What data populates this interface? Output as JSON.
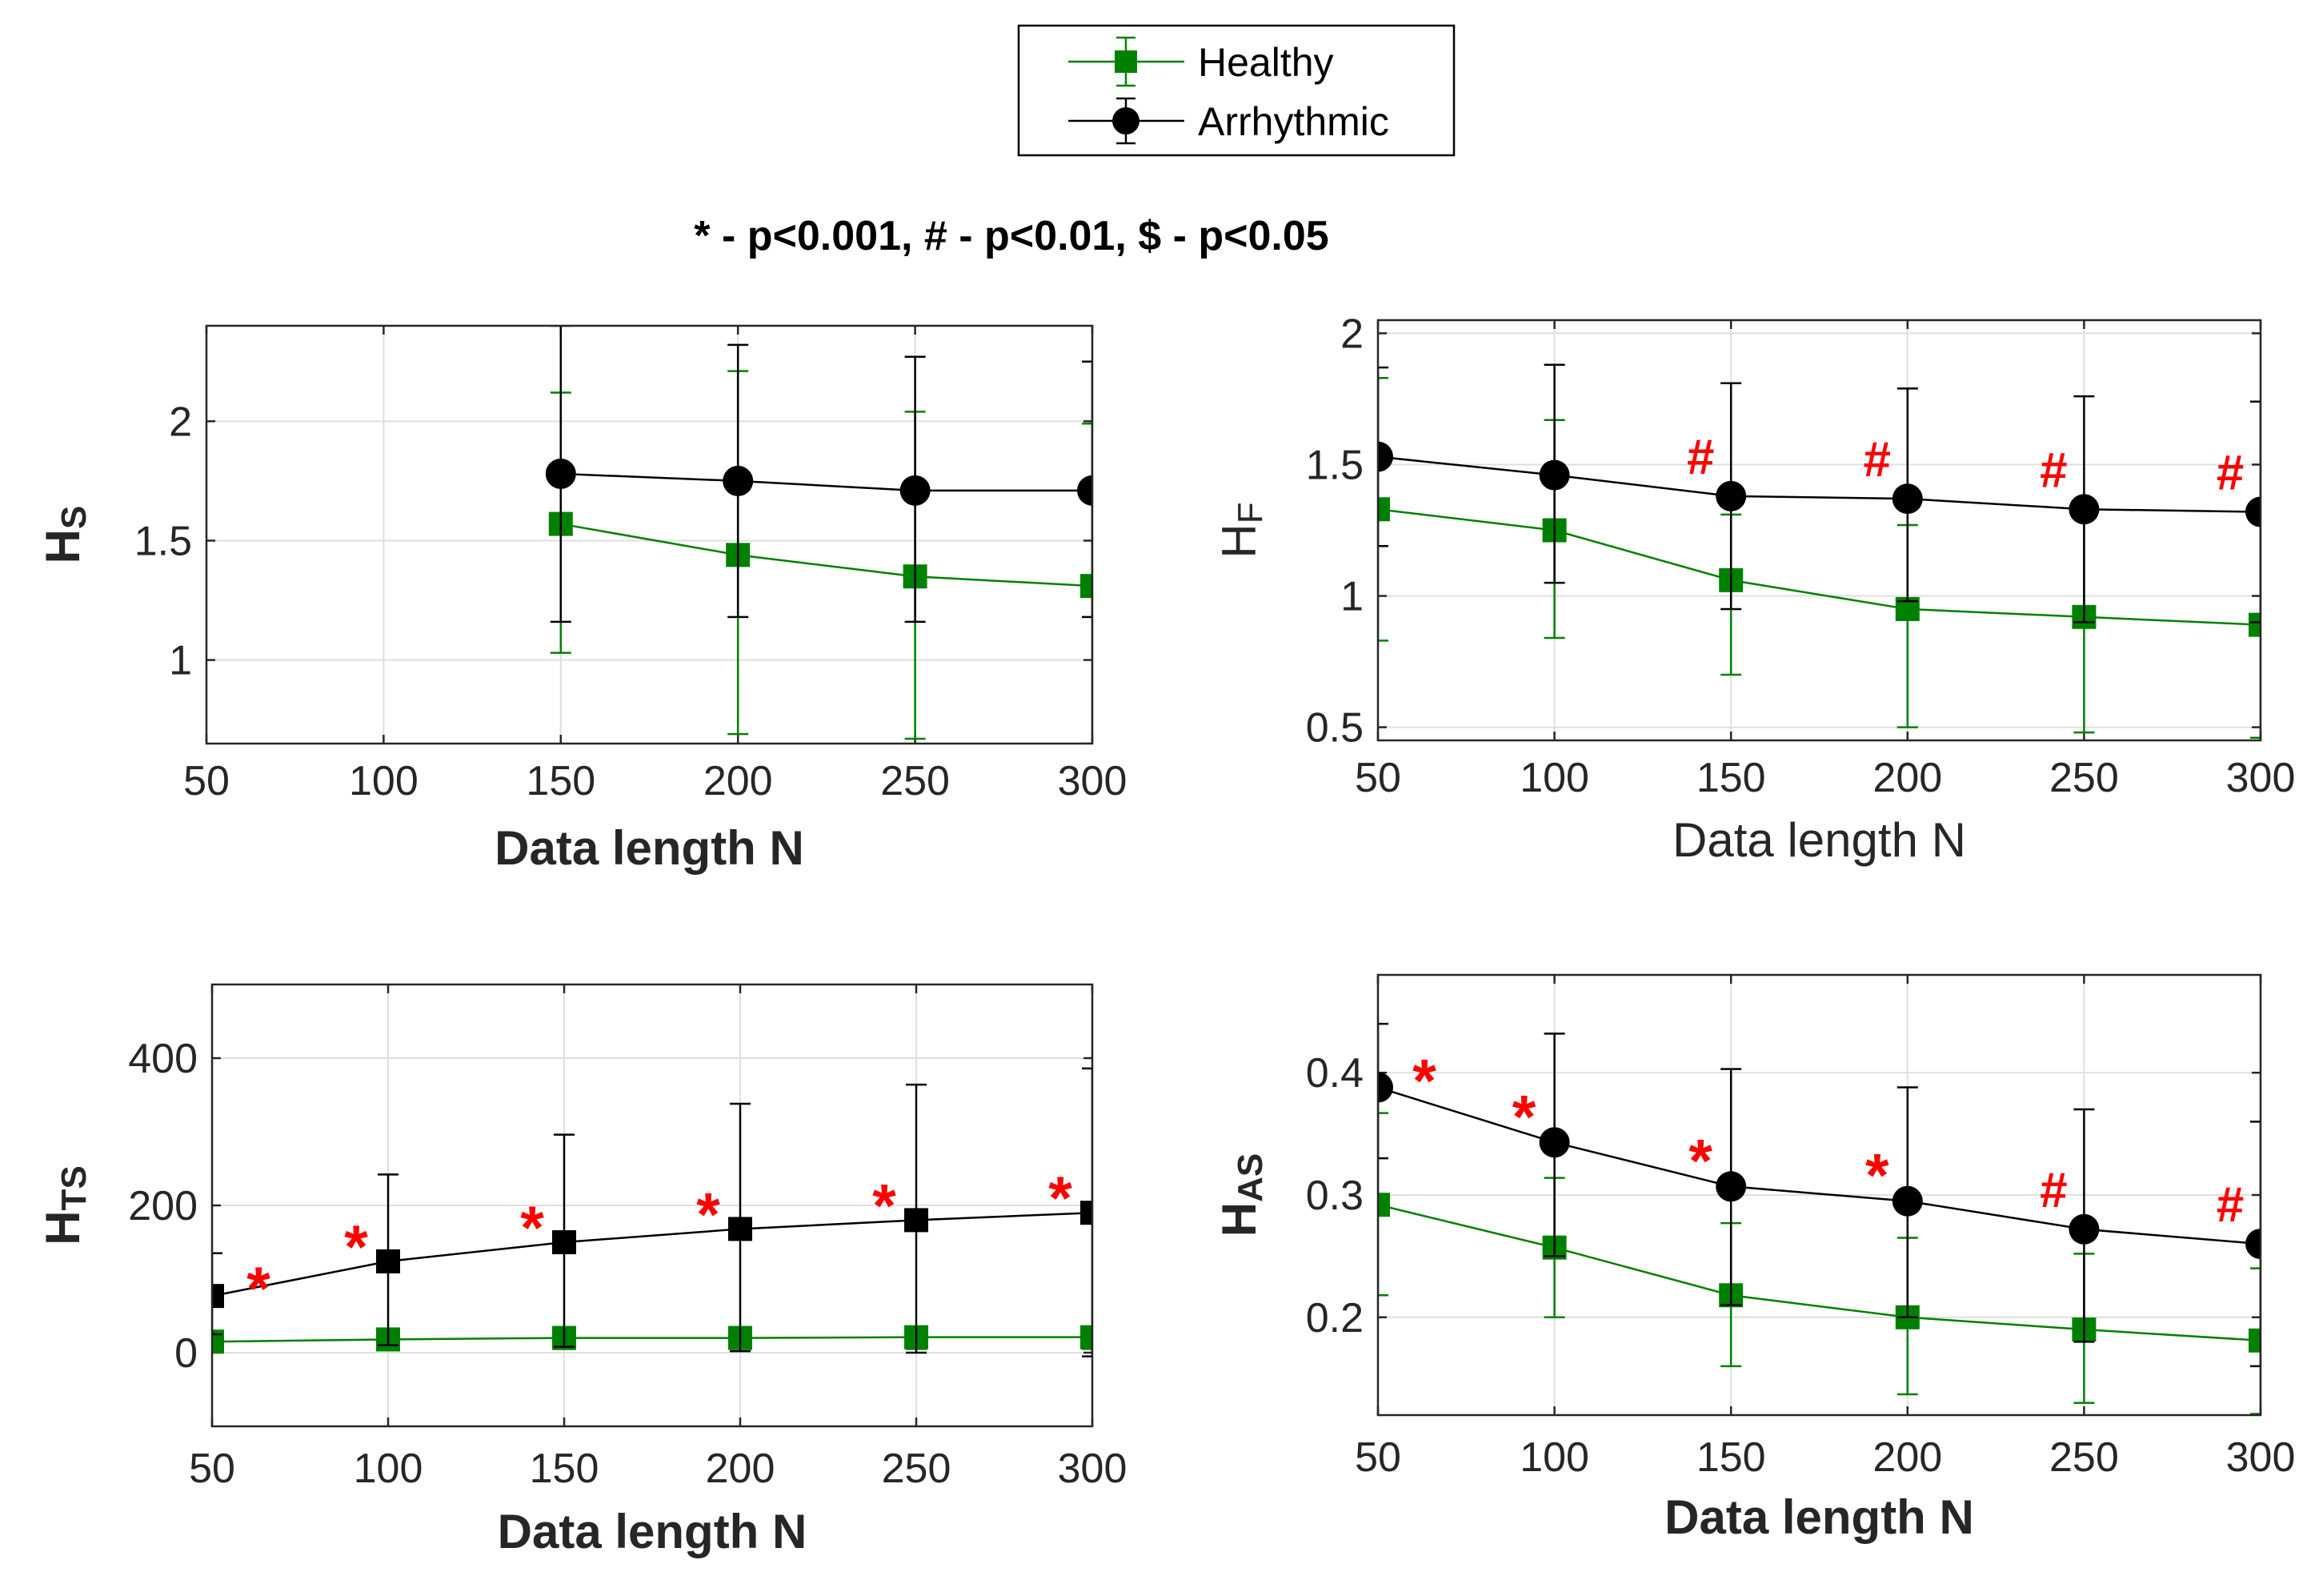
{
  "legend": {
    "entries": [
      {
        "name": "Healthy",
        "color": "#008000",
        "marker": "square"
      },
      {
        "name": "Arrhythmic",
        "color": "#000000",
        "marker": "circle"
      }
    ]
  },
  "subtitle": "* - p<0.001, # - p<0.01, $ - p<0.05",
  "colors": {
    "healthy": "#008000",
    "arrhythmic": "#000000",
    "significance": "#ff0000",
    "grid": "#dfdfdf"
  },
  "chart_data": [
    {
      "id": "hs",
      "type": "line",
      "ylabel_main": "H",
      "ylabel_sub": "S",
      "ylabel_bold": true,
      "xlabel": "Data length N",
      "xlabel_bold": true,
      "xlim": [
        50,
        300
      ],
      "ylim": [
        0.65,
        2.4
      ],
      "xticks": [
        50,
        100,
        150,
        200,
        250,
        300
      ],
      "yticks": [
        1,
        1.5,
        2
      ],
      "ytick_labels": [
        "1",
        "1.5",
        "2"
      ],
      "grid": true,
      "arrhythmic_marker": "circle",
      "series": [
        {
          "name": "Healthy",
          "x": [
            150,
            200,
            250,
            300
          ],
          "y": [
            1.57,
            1.44,
            1.35,
            1.31
          ],
          "err_low": [
            1.03,
            0.69,
            0.67,
            0.65
          ],
          "err_high": [
            2.12,
            2.21,
            2.04,
            1.99
          ]
        },
        {
          "name": "Arrhythmic",
          "x": [
            150,
            200,
            250,
            300
          ],
          "y": [
            1.78,
            1.75,
            1.71,
            1.71
          ],
          "err_low": [
            1.16,
            1.18,
            1.16,
            1.18
          ],
          "err_high": [
            2.4,
            2.32,
            2.27,
            2.25
          ]
        }
      ],
      "annotations": []
    },
    {
      "id": "hf",
      "type": "line",
      "ylabel_main": "H",
      "ylabel_sub": "F",
      "ylabel_bold": false,
      "xlabel": "Data length N",
      "xlabel_bold": false,
      "xlim": [
        50,
        300
      ],
      "ylim": [
        0.45,
        2.05
      ],
      "xticks": [
        50,
        100,
        150,
        200,
        250,
        300
      ],
      "yticks": [
        0.5,
        1,
        1.5,
        2
      ],
      "ytick_labels": [
        "0.5",
        "1",
        "1.5",
        "2"
      ],
      "grid": true,
      "arrhythmic_marker": "circle",
      "series": [
        {
          "name": "Healthy",
          "x": [
            50,
            100,
            150,
            200,
            250,
            300
          ],
          "y": [
            1.33,
            1.25,
            1.06,
            0.95,
            0.92,
            0.89
          ],
          "err_low": [
            0.83,
            0.84,
            0.7,
            0.5,
            0.48,
            0.46
          ],
          "err_high": [
            1.83,
            1.67,
            1.31,
            1.27,
            1.32,
            1.3
          ]
        },
        {
          "name": "Arrhythmic",
          "x": [
            50,
            100,
            150,
            200,
            250,
            300
          ],
          "y": [
            1.53,
            1.46,
            1.38,
            1.37,
            1.33,
            1.32
          ],
          "err_low": [
            1.19,
            1.05,
            0.95,
            0.98,
            0.9,
            0.9
          ],
          "err_high": [
            1.87,
            1.88,
            1.81,
            1.79,
            1.76,
            1.74
          ]
        }
      ],
      "annotations": [
        {
          "x": 150,
          "y": 1.38,
          "text": "#"
        },
        {
          "x": 200,
          "y": 1.37,
          "text": "#"
        },
        {
          "x": 250,
          "y": 1.33,
          "text": "#"
        },
        {
          "x": 300,
          "y": 1.32,
          "text": "#"
        }
      ]
    },
    {
      "id": "hts",
      "type": "line",
      "ylabel_main": "H",
      "ylabel_sub": "TS",
      "ylabel_bold": true,
      "xlabel": "Data length N",
      "xlabel_bold": true,
      "xlim": [
        50,
        300
      ],
      "ylim": [
        -100,
        500
      ],
      "xticks": [
        50,
        100,
        150,
        200,
        250,
        300
      ],
      "yticks": [
        0,
        200,
        400
      ],
      "ytick_labels": [
        "0",
        "200",
        "400"
      ],
      "grid": true,
      "arrhythmic_marker": "square",
      "series": [
        {
          "name": "Healthy",
          "x": [
            50,
            100,
            150,
            200,
            250,
            300
          ],
          "y": [
            15,
            18,
            20,
            20,
            21,
            21
          ],
          "err_low": [
            5,
            5,
            5,
            5,
            5,
            5
          ],
          "err_high": [
            25,
            28,
            30,
            32,
            32,
            32
          ]
        },
        {
          "name": "Arrhythmic",
          "x": [
            50,
            100,
            150,
            200,
            250,
            300
          ],
          "y": [
            77,
            124,
            150,
            168,
            180,
            190
          ],
          "err_low": [
            25,
            10,
            8,
            2,
            0,
            -5
          ],
          "err_high": [
            135,
            242,
            296,
            338,
            364,
            386
          ]
        }
      ],
      "annotations": [
        {
          "x": 50,
          "y": 77,
          "text": "*"
        },
        {
          "x": 100,
          "y": 124,
          "text": "*"
        },
        {
          "x": 150,
          "y": 150,
          "text": "*"
        },
        {
          "x": 200,
          "y": 168,
          "text": "*"
        },
        {
          "x": 250,
          "y": 180,
          "text": "*"
        },
        {
          "x": 300,
          "y": 190,
          "text": "*"
        }
      ]
    },
    {
      "id": "has",
      "type": "line",
      "ylabel_main": "H",
      "ylabel_sub": "AS",
      "ylabel_bold": true,
      "xlabel": "Data length N",
      "xlabel_bold": true,
      "xlim": [
        50,
        300
      ],
      "ylim": [
        0.12,
        0.48
      ],
      "xticks": [
        50,
        100,
        150,
        200,
        250,
        300
      ],
      "yticks": [
        0.2,
        0.3,
        0.4
      ],
      "ytick_labels": [
        "0.2",
        "0.3",
        "0.4"
      ],
      "grid": true,
      "arrhythmic_marker": "circle",
      "series": [
        {
          "name": "Healthy",
          "x": [
            50,
            100,
            150,
            200,
            250,
            300
          ],
          "y": [
            0.292,
            0.257,
            0.218,
            0.2,
            0.19,
            0.181
          ],
          "err_low": [
            0.218,
            0.2,
            0.16,
            0.137,
            0.13,
            0.121
          ],
          "err_high": [
            0.367,
            0.314,
            0.277,
            0.265,
            0.252,
            0.24
          ]
        },
        {
          "name": "Arrhythmic",
          "x": [
            50,
            100,
            150,
            200,
            250,
            300
          ],
          "y": [
            0.388,
            0.343,
            0.307,
            0.295,
            0.272,
            0.26
          ],
          "err_low": [
            0.33,
            0.25,
            0.21,
            0.2,
            0.18,
            0.16
          ],
          "err_high": [
            0.44,
            0.432,
            0.403,
            0.388,
            0.37,
            0.36
          ]
        }
      ],
      "annotations": [
        {
          "x": 50,
          "y": 0.388,
          "text": "*"
        },
        {
          "x": 100,
          "y": 0.343,
          "text": "*"
        },
        {
          "x": 150,
          "y": 0.307,
          "text": "*"
        },
        {
          "x": 200,
          "y": 0.295,
          "text": "*"
        },
        {
          "x": 250,
          "y": 0.272,
          "text": "#"
        },
        {
          "x": 300,
          "y": 0.26,
          "text": "#"
        }
      ]
    }
  ]
}
